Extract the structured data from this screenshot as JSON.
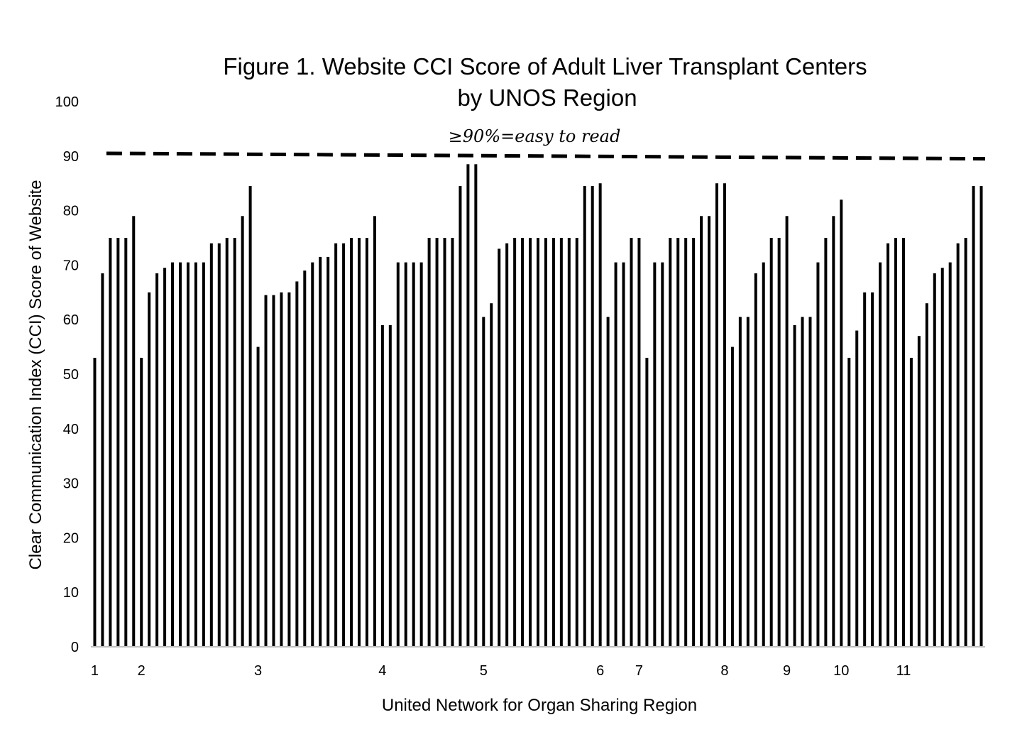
{
  "chart_data": {
    "type": "bar",
    "title_line1": "Figure 1. Website CCI Score of Adult Liver Transplant Centers",
    "title_line2": "by UNOS Region",
    "xlabel": "United Network for Organ Sharing Region",
    "ylabel": "Clear Communication Index (CCI) Score of Website",
    "ylim": [
      0,
      100
    ],
    "yticks": [
      0,
      10,
      20,
      30,
      40,
      50,
      60,
      70,
      80,
      90,
      100
    ],
    "grid": false,
    "legend": "none",
    "bar_color": "#000000",
    "threshold": {
      "label": "≥90%=easy to read",
      "y_start": 90.5,
      "y_end": 89.5,
      "style": "dashed"
    },
    "values": [
      53,
      68.5,
      75,
      75,
      75,
      79,
      53,
      65,
      68.5,
      69.5,
      70.5,
      70.5,
      70.5,
      70.5,
      70.5,
      74,
      74,
      75,
      75,
      79,
      84.5,
      55,
      64.5,
      64.5,
      65,
      65,
      67,
      69,
      70.5,
      71.5,
      71.5,
      74,
      74,
      75,
      75,
      75,
      79,
      59,
      59,
      70.5,
      70.5,
      70.5,
      70.5,
      75,
      75,
      75,
      75,
      84.5,
      88.5,
      88.5,
      60.5,
      63,
      73,
      74,
      75,
      75,
      75,
      75,
      75,
      75,
      75,
      75,
      75,
      84.5,
      84.5,
      85,
      60.5,
      70.5,
      70.5,
      75,
      75,
      53,
      70.5,
      70.5,
      75,
      75,
      75,
      75,
      79,
      79,
      85,
      85,
      55,
      60.5,
      60.5,
      68.5,
      70.5,
      75,
      75,
      79,
      59,
      60.5,
      60.5,
      70.5,
      75,
      79,
      82,
      53,
      58,
      65,
      65,
      70.5,
      74,
      75,
      75,
      53,
      57,
      63,
      68.5,
      69.5,
      70.5,
      74,
      75,
      84.5,
      84.5
    ],
    "region_labels": [
      {
        "label": "1",
        "bar_index": 0
      },
      {
        "label": "2",
        "bar_index": 6
      },
      {
        "label": "3",
        "bar_index": 21
      },
      {
        "label": "4",
        "bar_index": 37
      },
      {
        "label": "5",
        "bar_index": 50
      },
      {
        "label": "6",
        "bar_index": 65
      },
      {
        "label": "7",
        "bar_index": 70
      },
      {
        "label": "8",
        "bar_index": 81
      },
      {
        "label": "9",
        "bar_index": 89
      },
      {
        "label": "10",
        "bar_index": 96
      },
      {
        "label": "11",
        "bar_index": 104
      }
    ]
  }
}
